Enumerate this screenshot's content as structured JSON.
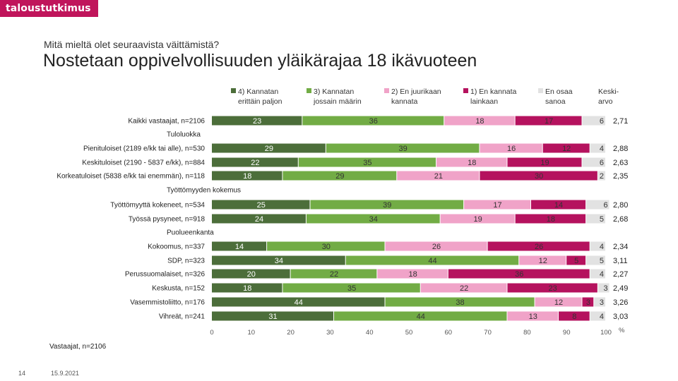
{
  "brand": {
    "logo_text": "taloustutkimus",
    "logo_color": "#c0155b"
  },
  "header": {
    "subtitle": "Mitä mieltä olet seuraavista väittämistä?",
    "title": "Nostetaan oppivelvollisuuden yläikärajaa 18 ikävuoteen"
  },
  "footer": {
    "base_note": "Vastaajat, n=2106",
    "page_number": "14",
    "date": "15.9.2021"
  },
  "chart_data": {
    "type": "bar",
    "orientation": "horizontal-stacked",
    "x_axis": {
      "ticks": [
        "0",
        "10",
        "20",
        "30",
        "40",
        "50",
        "60",
        "70",
        "80",
        "90",
        "100"
      ],
      "unit": "%",
      "range": [
        0,
        100
      ]
    },
    "series": [
      {
        "name": "4) Kannatan erittäin paljon",
        "label_lines": [
          "4) Kannatan",
          "erittäin paljon"
        ],
        "color": "#4c6e3a"
      },
      {
        "name": "3) Kannatan jossain määrin",
        "label_lines": [
          "3) Kannatan",
          "jossain määrin"
        ],
        "color": "#72ac45"
      },
      {
        "name": "2) En juurikaan kannata",
        "label_lines": [
          "2) En juurikaan",
          "kannata"
        ],
        "color": "#f0a3c8"
      },
      {
        "name": "1) En kannata lainkaan",
        "label_lines": [
          "1) En kannata",
          "lainkaan"
        ],
        "color": "#b5125e"
      },
      {
        "name": "En osaa sanoa",
        "label_lines": [
          "En osaa",
          "sanoa"
        ],
        "color": "#e2e2e2"
      }
    ],
    "mean_header_lines": [
      "Keski-",
      "arvo"
    ],
    "rows": [
      {
        "kind": "bar",
        "label": "Kaikki vastaajat, n=2106",
        "values": [
          23,
          36,
          18,
          17,
          6
        ],
        "labels": [
          "23",
          "36",
          "18",
          "17",
          "6"
        ],
        "mean": "2,71"
      },
      {
        "kind": "group",
        "label": "Tuloluokka"
      },
      {
        "kind": "bar",
        "label": "Pienituloiset (2189 e/kk tai alle), n=530",
        "values": [
          29,
          39,
          16,
          12,
          4
        ],
        "labels": [
          "29",
          "39",
          "16",
          "12",
          "4"
        ],
        "mean": "2,88"
      },
      {
        "kind": "bar",
        "label": "Keskituloiset (2190 - 5837 e/kk), n=884",
        "values": [
          22,
          35,
          18,
          19,
          6
        ],
        "labels": [
          "22",
          "35",
          "18",
          "19",
          "6"
        ],
        "mean": "2,63"
      },
      {
        "kind": "bar",
        "label": "Korkeatuloiset (5838 e/kk tai enemmän), n=118",
        "values": [
          18,
          29,
          21,
          30,
          2
        ],
        "labels": [
          "18",
          "29",
          "21",
          "30",
          "2"
        ],
        "mean": "2,35"
      },
      {
        "kind": "group",
        "label": "Työttömyyden kokemus"
      },
      {
        "kind": "bar",
        "label": "Työttömyyttä kokeneet, n=534",
        "values": [
          25,
          39,
          17,
          14,
          6
        ],
        "labels": [
          "25",
          "39",
          "17",
          "14",
          "6"
        ],
        "mean": "2,80"
      },
      {
        "kind": "bar",
        "label": "Työssä pysyneet, n=918",
        "values": [
          24,
          34,
          19,
          18,
          5
        ],
        "labels": [
          "24",
          "34",
          "19",
          "18",
          "5"
        ],
        "mean": "2,68"
      },
      {
        "kind": "group",
        "label": "Puolueenkanta"
      },
      {
        "kind": "bar",
        "label": "Kokoomus, n=337",
        "values": [
          14,
          30,
          26,
          26,
          4
        ],
        "labels": [
          "14",
          "30",
          "26",
          "26",
          "4"
        ],
        "mean": "2,34"
      },
      {
        "kind": "bar",
        "label": "SDP, n=323",
        "values": [
          34,
          44,
          12,
          5,
          5
        ],
        "labels": [
          "34",
          "44",
          "12",
          "5",
          "5"
        ],
        "mean": "3,11"
      },
      {
        "kind": "bar",
        "label": "Perussuomalaiset, n=326",
        "values": [
          20,
          22,
          18,
          36,
          4
        ],
        "labels": [
          "20",
          "22",
          "18",
          "36",
          "4"
        ],
        "mean": "2,27"
      },
      {
        "kind": "bar",
        "label": "Keskusta, n=152",
        "values": [
          18,
          35,
          22,
          23,
          3
        ],
        "labels": [
          "18",
          "35",
          "22",
          "23",
          "3"
        ],
        "mean": "2,49"
      },
      {
        "kind": "bar",
        "label": "Vasemmistoliitto, n=176",
        "values": [
          44,
          38,
          12,
          3,
          3
        ],
        "labels": [
          "44",
          "38",
          "12",
          "3",
          "3"
        ],
        "mean": "3,26"
      },
      {
        "kind": "bar",
        "label": "Vihreät, n=241",
        "values": [
          31,
          44,
          13,
          8,
          4
        ],
        "labels": [
          "31",
          "44",
          "13",
          "8",
          "4"
        ],
        "mean": "3,03"
      }
    ]
  }
}
